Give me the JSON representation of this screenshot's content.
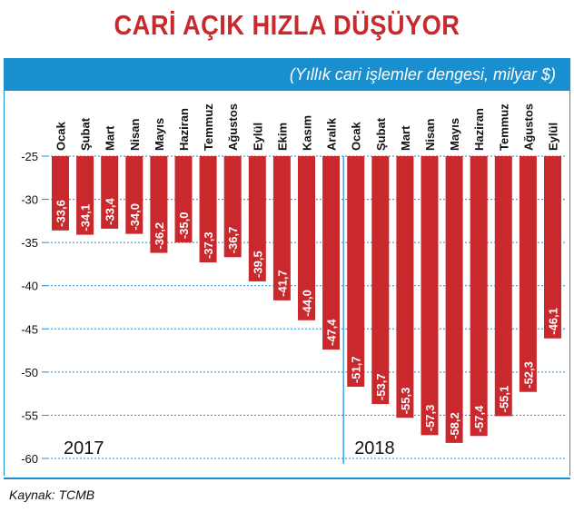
{
  "title": "CARİ AÇIK HIZLA DÜŞÜYOR",
  "subtitle": "(Yıllık cari işlemler dengesi, milyar $)",
  "source": "Kaynak: TCMB",
  "colors": {
    "bar": "#c9282d",
    "accent": "#1a8fd0",
    "title": "#c9282d"
  },
  "chart_data": {
    "type": "bar",
    "title": "CARİ AÇIK HIZLA DÜŞÜYOR",
    "subtitle": "(Yıllık cari işlemler dengesi, milyar $)",
    "categories": [
      "Ocak",
      "Şubat",
      "Mart",
      "Nisan",
      "Mayıs",
      "Haziran",
      "Temmuz",
      "Ağustos",
      "Eylül",
      "Ekim",
      "Kasım",
      "Aralık",
      "Ocak",
      "Şubat",
      "Mart",
      "Nisan",
      "Mayıs",
      "Haziran",
      "Temmuz",
      "Ağustos",
      "Eylül"
    ],
    "values": [
      -33.6,
      -34.1,
      -33.4,
      -34.0,
      -36.2,
      -35.0,
      -37.3,
      -36.7,
      -39.5,
      -41.7,
      -44.0,
      -47.4,
      -51.7,
      -53.7,
      -55.3,
      -57.3,
      -58.2,
      -57.4,
      -55.1,
      -52.3,
      -46.1
    ],
    "value_labels": [
      "-33,6",
      "-34,1",
      "-33,4",
      "-34,0",
      "-36,2",
      "-35,0",
      "-37,3",
      "-36,7",
      "-39,5",
      "-41,7",
      "-44,0",
      "-47,4",
      "-51,7",
      "-53,7",
      "-55,3",
      "-57,3",
      "-58,2",
      "-57,4",
      "-55,1",
      "-52,3",
      "-46,1"
    ],
    "groups": [
      {
        "label": "2017",
        "start": 0,
        "end": 11
      },
      {
        "label": "2018",
        "start": 12,
        "end": 20
      }
    ],
    "yticks": [
      -25,
      -30,
      -35,
      -40,
      -45,
      -50,
      -55,
      -60
    ],
    "ylim": [
      -60,
      -25
    ],
    "grid": true,
    "xlabel": "",
    "ylabel": ""
  }
}
